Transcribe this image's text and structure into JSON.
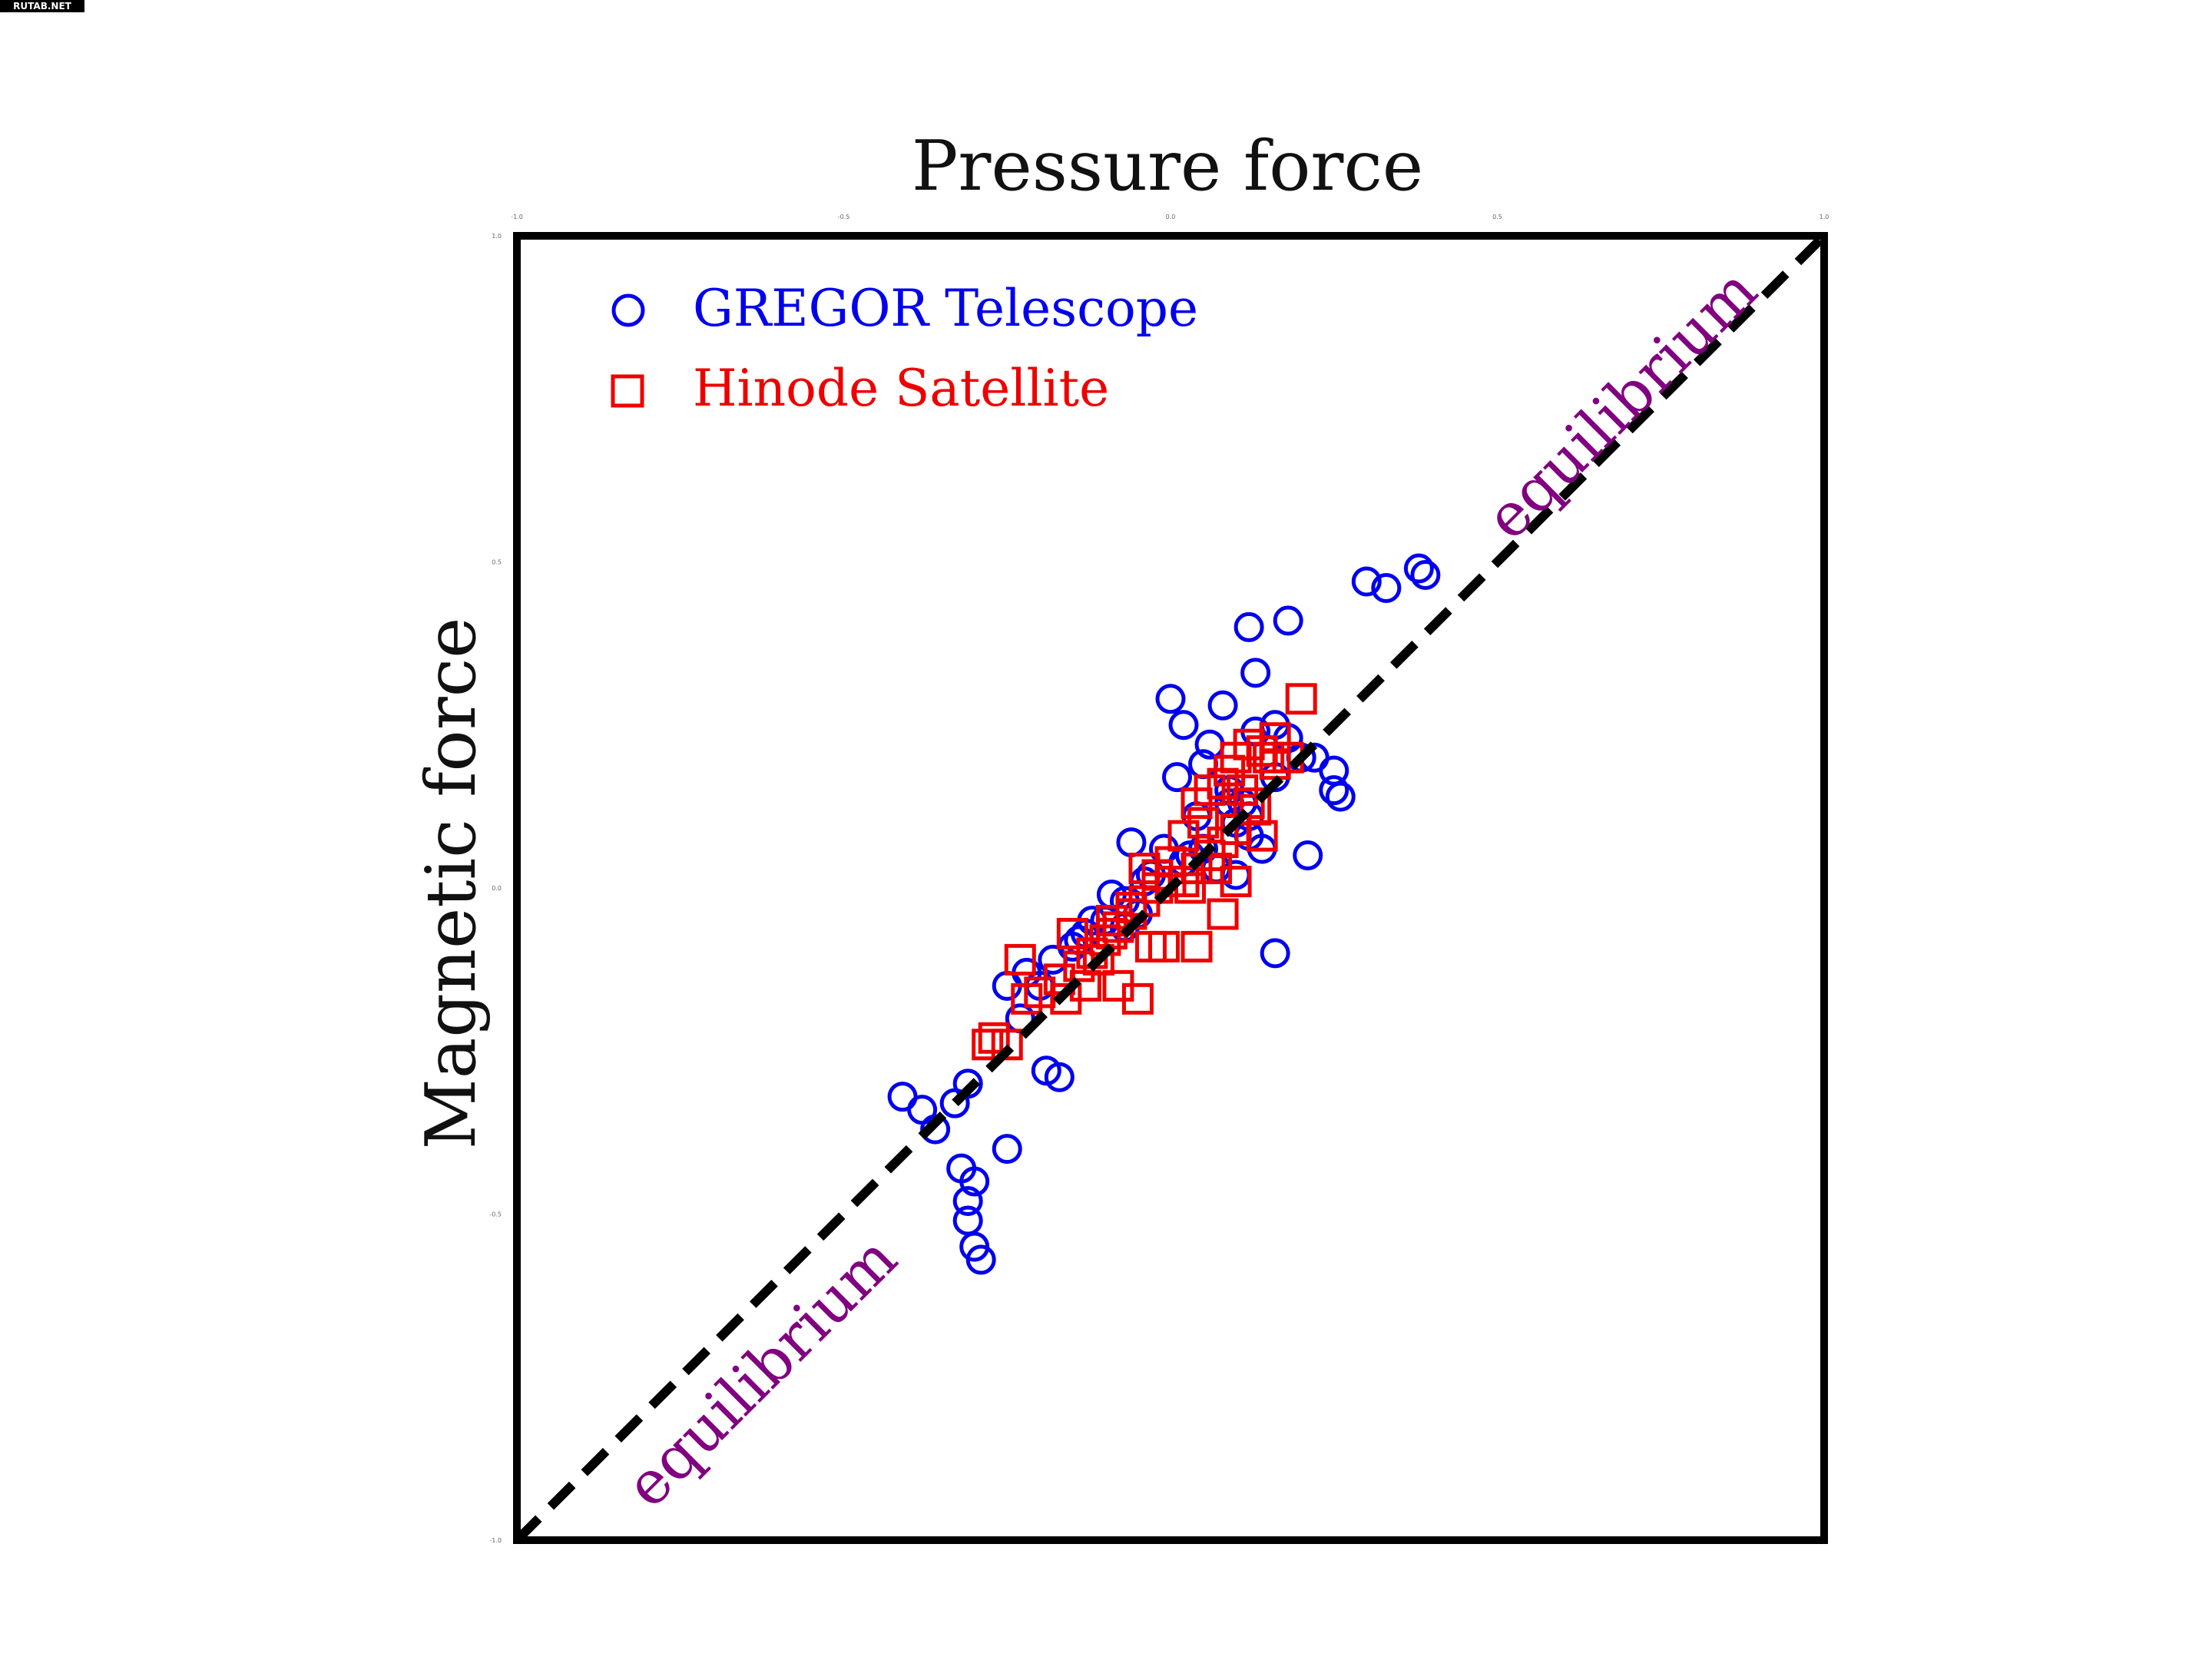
{
  "watermark": "RUTAB.NET",
  "chart_data": {
    "type": "scatter",
    "title": "Pressure force",
    "xlabel": "",
    "ylabel": "Magnetic force",
    "xlim": [
      -1.0,
      1.0
    ],
    "ylim": [
      -1.0,
      1.0
    ],
    "xticks": [
      "-1.0",
      "-0.5",
      "0.0",
      "0.5",
      "1.0"
    ],
    "yticks": [
      "1.0",
      "0.5",
      "0.0",
      "-0.5",
      "-1.0"
    ],
    "grid": false,
    "legend_position": "top-left",
    "reference_line": {
      "label": "equilibrium",
      "style": "dashed",
      "color": "#000000",
      "from": [
        -1.0,
        -1.0
      ],
      "to": [
        1.0,
        1.0
      ]
    },
    "annotations": [
      "equilibrium",
      "equilibrium"
    ],
    "annotation_color": "#800080",
    "series": [
      {
        "name": "GREGOR Telescope",
        "marker": "circle",
        "color": "#0000ee",
        "x": [
          0.38,
          0.39,
          0.3,
          0.33,
          0.18,
          0.12,
          0.13,
          0.0,
          0.08,
          0.02,
          0.16,
          0.13,
          0.18,
          0.06,
          0.2,
          0.22,
          0.25,
          0.16,
          0.05,
          0.09,
          0.11,
          0.12,
          0.01,
          -0.03,
          -0.06,
          0.1,
          0.14,
          0.21,
          0.04,
          0.03,
          0.12,
          0.07,
          -0.01,
          -0.04,
          -0.07,
          -0.1,
          -0.13,
          -0.09,
          -0.12,
          -0.15,
          -0.18,
          -0.2,
          -0.14,
          -0.22,
          -0.25,
          -0.31,
          -0.33,
          -0.36,
          -0.38,
          -0.41,
          -0.32,
          -0.3,
          -0.31,
          -0.31,
          -0.3,
          -0.29,
          -0.25,
          -0.19,
          -0.17,
          -0.23,
          -0.07,
          -0.05,
          0.02,
          0.05,
          0.16,
          0.09,
          0.26,
          0.1,
          0.25
        ],
        "y": [
          0.49,
          0.48,
          0.47,
          0.46,
          0.41,
          0.4,
          0.33,
          0.29,
          0.28,
          0.25,
          0.25,
          0.24,
          0.23,
          0.22,
          0.2,
          0.2,
          0.18,
          0.17,
          0.19,
          0.15,
          0.13,
          0.11,
          0.17,
          0.02,
          0.07,
          0.1,
          0.06,
          0.05,
          0.11,
          0.05,
          0.08,
          0.03,
          0.06,
          0.01,
          -0.02,
          -0.05,
          -0.07,
          -0.01,
          -0.05,
          -0.09,
          -0.11,
          -0.15,
          -0.08,
          -0.13,
          -0.15,
          -0.3,
          -0.33,
          -0.37,
          -0.34,
          -0.32,
          -0.43,
          -0.45,
          -0.48,
          -0.51,
          -0.55,
          -0.57,
          -0.4,
          -0.28,
          -0.29,
          -0.2,
          -0.06,
          -0.04,
          0.04,
          0.06,
          -0.1,
          0.13,
          0.14,
          0.02,
          0.15
        ]
      },
      {
        "name": "Hinode Satellite",
        "marker": "square",
        "color": "#ee0000",
        "x": [
          0.2,
          0.16,
          0.15,
          0.14,
          0.12,
          0.1,
          0.08,
          0.06,
          0.04,
          0.05,
          0.02,
          0.1,
          0.08,
          0.06,
          0.04,
          0.02,
          0.0,
          -0.02,
          -0.04,
          -0.06,
          -0.08,
          -0.09,
          0.0,
          -0.02,
          -0.04,
          -0.06,
          -0.09,
          -0.1,
          -0.12,
          -0.14,
          -0.17,
          -0.2,
          -0.22,
          -0.25,
          -0.15,
          -0.13,
          -0.11,
          -0.05,
          -0.08,
          -0.16,
          -0.23,
          -0.27,
          -0.28,
          0.1,
          0.14,
          0.13,
          0.11,
          0.09,
          0.16,
          0.18,
          0.12,
          0.07,
          0.03,
          -0.01,
          -0.03,
          0.04,
          0.08
        ],
        "y": [
          0.29,
          0.23,
          0.2,
          0.21,
          0.22,
          0.2,
          0.16,
          0.15,
          0.13,
          0.1,
          0.08,
          0.09,
          0.07,
          0.05,
          0.03,
          0.01,
          0.04,
          0.0,
          -0.02,
          -0.04,
          -0.06,
          -0.05,
          0.01,
          0.02,
          0.03,
          -0.03,
          -0.07,
          -0.08,
          -0.1,
          -0.12,
          -0.14,
          -0.16,
          -0.17,
          -0.24,
          -0.07,
          -0.15,
          -0.11,
          -0.17,
          -0.15,
          -0.17,
          -0.11,
          -0.23,
          -0.24,
          0.01,
          0.08,
          0.12,
          0.15,
          0.18,
          0.19,
          0.2,
          0.13,
          0.03,
          0.0,
          -0.09,
          -0.09,
          -0.09,
          -0.04
        ]
      }
    ]
  }
}
